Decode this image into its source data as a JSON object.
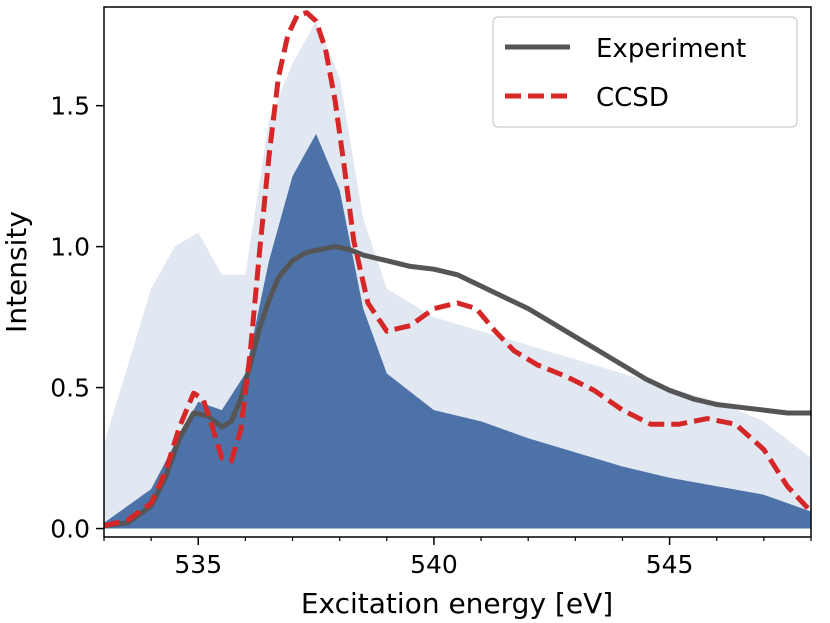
{
  "chart_data": {
    "type": "line",
    "title": "",
    "xlabel": "Excitation energy [eV]",
    "ylabel": "Intensity",
    "xlim": [
      533,
      548
    ],
    "ylim": [
      -0.03,
      1.85
    ],
    "xticks": [
      535,
      540,
      545
    ],
    "yticks": [
      0.0,
      0.5,
      1.0,
      1.5
    ],
    "xtick_labels": [
      "535",
      "540",
      "545"
    ],
    "ytick_labels": [
      "0.0",
      "0.5",
      "1.0",
      "1.5"
    ],
    "legend": {
      "position": "top-right",
      "entries": [
        "Experiment",
        "CCSD"
      ]
    },
    "series": [
      {
        "name": "Experiment",
        "color": "#555555",
        "style": "solid",
        "x": [
          533.0,
          533.5,
          534.0,
          534.3,
          534.6,
          534.9,
          535.2,
          535.5,
          535.7,
          535.9,
          536.1,
          536.3,
          536.5,
          536.7,
          537.0,
          537.3,
          537.6,
          537.9,
          538.2,
          538.5,
          539.0,
          539.5,
          540.0,
          540.5,
          541.0,
          541.5,
          542.0,
          542.5,
          543.0,
          543.5,
          544.0,
          544.5,
          545.0,
          545.5,
          546.0,
          546.5,
          547.0,
          547.5,
          548.0
        ],
        "values": [
          0.01,
          0.02,
          0.08,
          0.18,
          0.32,
          0.41,
          0.4,
          0.36,
          0.38,
          0.46,
          0.58,
          0.71,
          0.81,
          0.89,
          0.95,
          0.98,
          0.99,
          1.0,
          0.99,
          0.97,
          0.95,
          0.93,
          0.92,
          0.9,
          0.86,
          0.82,
          0.78,
          0.73,
          0.68,
          0.63,
          0.58,
          0.53,
          0.49,
          0.46,
          0.44,
          0.43,
          0.42,
          0.41,
          0.41
        ]
      },
      {
        "name": "CCSD",
        "color": "#d62728",
        "style": "dashed",
        "x": [
          533.0,
          533.5,
          534.0,
          534.3,
          534.6,
          534.9,
          535.1,
          535.3,
          535.5,
          535.7,
          535.9,
          536.1,
          536.3,
          536.5,
          536.7,
          536.9,
          537.1,
          537.3,
          537.5,
          537.7,
          537.9,
          538.1,
          538.3,
          538.6,
          539.0,
          539.5,
          540.0,
          540.5,
          540.9,
          541.3,
          541.7,
          542.2,
          542.8,
          543.4,
          544.0,
          544.6,
          545.2,
          545.8,
          546.4,
          547.0,
          547.5,
          548.0
        ],
        "values": [
          0.01,
          0.03,
          0.09,
          0.2,
          0.36,
          0.48,
          0.46,
          0.36,
          0.25,
          0.24,
          0.35,
          0.62,
          0.98,
          1.32,
          1.6,
          1.75,
          1.82,
          1.83,
          1.8,
          1.7,
          1.52,
          1.28,
          1.02,
          0.8,
          0.7,
          0.72,
          0.78,
          0.8,
          0.78,
          0.7,
          0.63,
          0.58,
          0.54,
          0.49,
          0.42,
          0.37,
          0.37,
          0.39,
          0.37,
          0.28,
          0.15,
          0.06
        ]
      }
    ],
    "background_ensemble": {
      "color": "#4c72a8",
      "x": [
        533.0,
        534.0,
        534.5,
        535.0,
        535.5,
        536.0,
        536.5,
        537.0,
        537.5,
        538.0,
        538.5,
        539.0,
        540.0,
        541.0,
        542.0,
        543.0,
        544.0,
        545.0,
        546.0,
        547.0,
        548.0
      ],
      "dense_upper": [
        0.02,
        0.14,
        0.3,
        0.45,
        0.42,
        0.55,
        0.95,
        1.25,
        1.4,
        1.2,
        0.78,
        0.55,
        0.42,
        0.38,
        0.32,
        0.27,
        0.22,
        0.18,
        0.15,
        0.12,
        0.06
      ],
      "faint_upper": [
        0.3,
        0.85,
        1.0,
        1.05,
        0.9,
        0.9,
        1.45,
        1.65,
        1.8,
        1.6,
        1.1,
        0.85,
        0.75,
        0.7,
        0.65,
        0.6,
        0.55,
        0.5,
        0.45,
        0.38,
        0.25
      ]
    }
  }
}
